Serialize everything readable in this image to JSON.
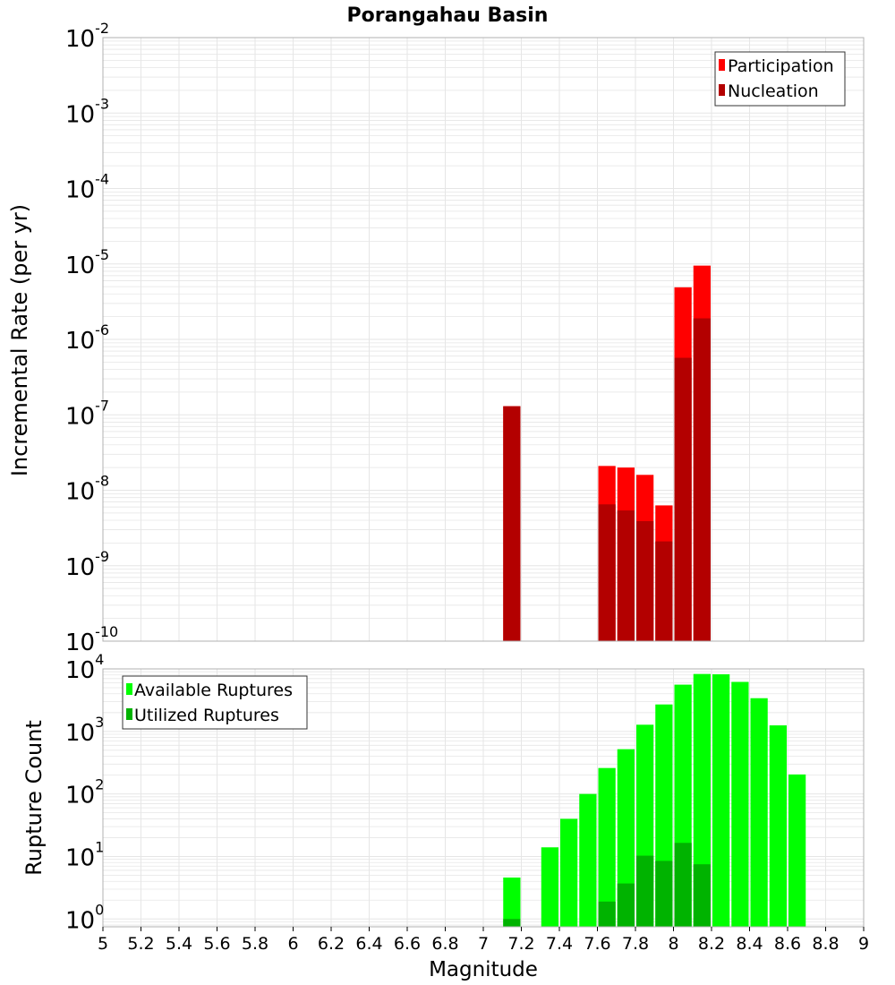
{
  "title": "Porangahau Basin",
  "xlabel": "Magnitude",
  "x_ticks": [
    "5",
    "5.2",
    "5.4",
    "5.6",
    "5.8",
    "6",
    "6.2",
    "6.4",
    "6.6",
    "6.8",
    "7",
    "7.2",
    "7.4",
    "7.6",
    "7.8",
    "8",
    "8.2",
    "8.4",
    "8.6",
    "8.8",
    "9"
  ],
  "colors": {
    "participation": "#ff0000",
    "nucleation": "#b30000",
    "available": "#00ff00",
    "utilized": "#00b300",
    "grid": "#e6e6e6",
    "frame": "#b0b0b0"
  },
  "chart_data": [
    {
      "type": "bar",
      "panel": "top",
      "ylabel": "Incremental Rate (per yr)",
      "yscale": "log",
      "ylim": [
        1e-10,
        0.01
      ],
      "xlim": [
        5,
        9
      ],
      "bin_width": 0.1,
      "y_tick_exponents": [
        "-10",
        "-9",
        "-8",
        "-7",
        "-6",
        "-5",
        "-4",
        "-3",
        "-2"
      ],
      "x": [
        7.15,
        7.65,
        7.75,
        7.85,
        7.95,
        8.05,
        8.15
      ],
      "series": [
        {
          "name": "Participation",
          "values": [
            1.3e-07,
            2.1e-08,
            2e-08,
            1.6e-08,
            6.3e-09,
            4.9e-06,
            9.5e-06
          ]
        },
        {
          "name": "Nucleation",
          "values": [
            1.3e-07,
            6.5e-09,
            5.4e-09,
            3.9e-09,
            2.1e-09,
            5.7e-07,
            1.9e-06
          ]
        }
      ],
      "legend": [
        "Participation",
        "Nucleation"
      ]
    },
    {
      "type": "bar",
      "panel": "bottom",
      "ylabel": "Rupture Count",
      "yscale": "log",
      "ylim": [
        0.75,
        10000
      ],
      "xlim": [
        5,
        9
      ],
      "bin_width": 0.1,
      "y_tick_exponents": [
        "0",
        "1",
        "2",
        "3",
        "4"
      ],
      "x": [
        7.15,
        7.35,
        7.45,
        7.55,
        7.65,
        7.75,
        7.85,
        7.95,
        8.05,
        8.15,
        8.25,
        8.35,
        8.45,
        8.55,
        8.65
      ],
      "series": [
        {
          "name": "Available Ruptures",
          "values": [
            4.6,
            14,
            40,
            100,
            260,
            520,
            1280,
            2700,
            5600,
            8300,
            8200,
            6200,
            3400,
            1250,
            205
          ]
        },
        {
          "name": "Utilized Ruptures",
          "values": [
            1.0,
            0,
            0,
            0,
            1.9,
            3.7,
            10.3,
            8.5,
            16.5,
            7.5,
            0,
            0,
            0,
            0,
            0
          ]
        }
      ],
      "legend": [
        "Available Ruptures",
        "Utilized Ruptures"
      ]
    }
  ]
}
